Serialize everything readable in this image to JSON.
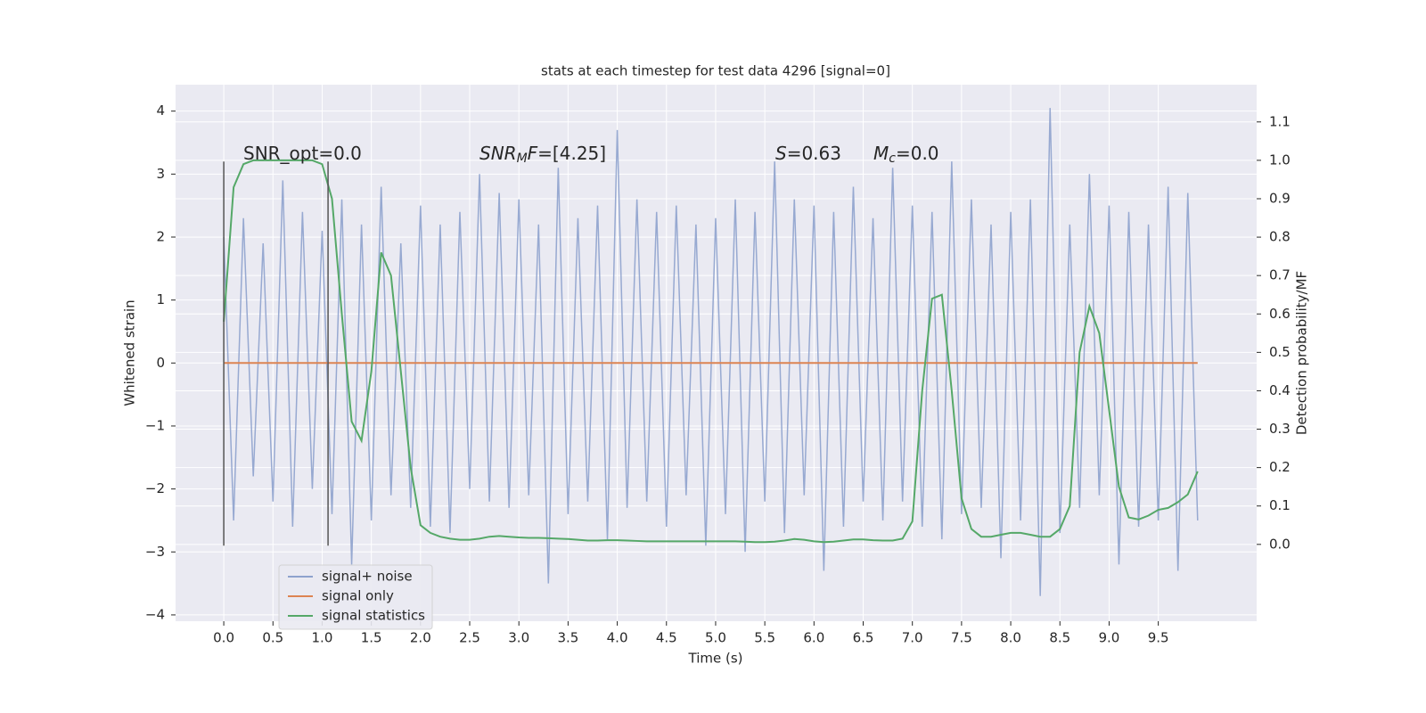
{
  "chart_data": {
    "type": "line",
    "title": "stats at each timestep for test data 4296 [signal=0]",
    "xlabel": "Time (s)",
    "ylabel": "Whitened strain",
    "y2label": "Detection probability/MF",
    "xlim": [
      -0.49,
      10.5
    ],
    "ylim": [
      -4.1,
      4.42
    ],
    "y2lim": [
      -0.2,
      1.197
    ],
    "xticks": [
      {
        "value": 0,
        "label": "0.0"
      },
      0.5,
      {
        "value": 1,
        "label": "1.0"
      },
      1.5,
      {
        "value": 2,
        "label": "2.0"
      },
      2.5,
      {
        "value": 3,
        "label": "3.0"
      },
      3.5,
      {
        "value": 4,
        "label": "4.0"
      },
      4.5,
      {
        "value": 5,
        "label": "5.0"
      },
      5.5,
      {
        "value": 6,
        "label": "6.0"
      },
      6.5,
      {
        "value": 7,
        "label": "7.0"
      },
      7.5,
      {
        "value": 8,
        "label": "8.0"
      },
      8.5,
      {
        "value": 9,
        "label": "9.0"
      },
      9.5
    ],
    "yticks": [
      {
        "value": -4,
        "label": "−4"
      },
      {
        "value": -3,
        "label": "−3"
      },
      {
        "value": -2,
        "label": "−2"
      },
      {
        "value": -1,
        "label": "−1"
      },
      0,
      1,
      2,
      3,
      4
    ],
    "y2ticks": [
      {
        "value": 0,
        "label": "0.0"
      },
      0.1,
      0.2,
      0.3,
      0.4,
      0.5,
      0.6,
      0.7,
      0.8,
      0.9,
      {
        "value": 1,
        "label": "1.0"
      },
      1.1
    ],
    "grid": true,
    "legend": "lower left",
    "x": [
      0,
      0.1,
      0.2,
      0.3,
      0.4,
      0.5,
      0.6,
      0.7,
      0.8,
      0.9,
      1,
      1.1,
      1.2,
      1.3,
      1.4,
      1.5,
      1.6,
      1.7,
      1.8,
      1.9,
      2,
      2.1,
      2.2,
      2.3,
      2.4,
      2.5,
      2.6,
      2.7,
      2.8,
      2.9,
      3,
      3.1,
      3.2,
      3.3,
      3.4,
      3.5,
      3.6,
      3.7,
      3.8,
      3.9,
      4,
      4.1,
      4.2,
      4.3,
      4.4,
      4.5,
      4.6,
      4.7,
      4.8,
      4.9,
      5,
      5.1,
      5.2,
      5.3,
      5.4,
      5.5,
      5.6,
      5.7,
      5.8,
      5.9,
      6,
      6.1,
      6.2,
      6.3,
      6.4,
      6.5,
      6.6,
      6.7,
      6.8,
      6.9,
      7,
      7.1,
      7.2,
      7.3,
      7.4,
      7.5,
      7.6,
      7.7,
      7.8,
      7.9,
      8,
      8.1,
      8.2,
      8.3,
      8.4,
      8.5,
      8.6,
      8.7,
      8.8,
      8.9,
      9,
      9.1,
      9.2,
      9.3,
      9.4,
      9.5,
      9.6,
      9.7,
      9.8,
      9.9
    ],
    "series": [
      {
        "name": "signal+ noise",
        "color": "#8ea2cd",
        "values": [
          2.0,
          -2.5,
          2.3,
          -1.8,
          1.9,
          -2.2,
          2.9,
          -2.6,
          2.4,
          -2.0,
          2.1,
          -2.4,
          2.6,
          -3.2,
          2.2,
          -2.5,
          2.8,
          -2.1,
          1.9,
          -2.3,
          2.5,
          -2.6,
          2.2,
          -2.7,
          2.4,
          -2.0,
          3.0,
          -2.2,
          2.7,
          -2.3,
          2.6,
          -2.1,
          2.2,
          -3.5,
          3.1,
          -2.4,
          2.3,
          -2.2,
          2.5,
          -2.8,
          3.7,
          -2.3,
          2.6,
          -2.2,
          2.4,
          -2.6,
          2.5,
          -2.1,
          2.2,
          -2.9,
          2.3,
          -2.4,
          2.6,
          -3.0,
          2.4,
          -2.2,
          3.2,
          -2.7,
          2.6,
          -2.1,
          2.5,
          -3.3,
          2.4,
          -2.6,
          2.8,
          -2.2,
          2.3,
          -2.5,
          3.1,
          -2.2,
          2.5,
          -2.6,
          2.4,
          -2.8,
          3.2,
          -2.4,
          2.6,
          -2.3,
          2.2,
          -3.1,
          2.4,
          -2.5,
          2.6,
          -3.7,
          4.05,
          -2.7,
          2.2,
          -2.3,
          3.0,
          -2.1,
          2.5,
          -3.2,
          2.4,
          -2.6,
          2.2,
          -2.5,
          2.8,
          -3.3,
          2.7,
          -2.5
        ]
      },
      {
        "name": "signal only",
        "color": "#dd8452",
        "values": [
          0,
          0,
          0,
          0,
          0,
          0,
          0,
          0,
          0,
          0,
          0,
          0,
          0,
          0,
          0,
          0,
          0,
          0,
          0,
          0,
          0,
          0,
          0,
          0,
          0,
          0,
          0,
          0,
          0,
          0,
          0,
          0,
          0,
          0,
          0,
          0,
          0,
          0,
          0,
          0,
          0,
          0,
          0,
          0,
          0,
          0,
          0,
          0,
          0,
          0,
          0,
          0,
          0,
          0,
          0,
          0,
          0,
          0,
          0,
          0,
          0,
          0,
          0,
          0,
          0,
          0,
          0,
          0,
          0,
          0,
          0,
          0,
          0,
          0,
          0,
          0,
          0,
          0,
          0,
          0,
          0,
          0,
          0,
          0,
          0,
          0,
          0,
          0,
          0,
          0,
          0,
          0,
          0,
          0,
          0,
          0,
          0,
          0,
          0,
          0
        ]
      },
      {
        "name": "signal statistics",
        "color": "#55a868",
        "axis": "y2",
        "values": [
          0.58,
          0.93,
          0.99,
          1.0,
          1.0,
          1.0,
          1.0,
          1.0,
          1.0,
          1.0,
          0.99,
          0.9,
          0.6,
          0.32,
          0.27,
          0.45,
          0.76,
          0.7,
          0.45,
          0.2,
          0.05,
          0.03,
          0.02,
          0.015,
          0.012,
          0.012,
          0.015,
          0.02,
          0.022,
          0.02,
          0.018,
          0.017,
          0.017,
          0.016,
          0.015,
          0.014,
          0.012,
          0.01,
          0.01,
          0.011,
          0.011,
          0.01,
          0.009,
          0.008,
          0.008,
          0.008,
          0.008,
          0.008,
          0.008,
          0.008,
          0.008,
          0.008,
          0.008,
          0.007,
          0.006,
          0.006,
          0.007,
          0.01,
          0.014,
          0.012,
          0.008,
          0.006,
          0.007,
          0.01,
          0.013,
          0.013,
          0.011,
          0.01,
          0.01,
          0.015,
          0.06,
          0.4,
          0.64,
          0.65,
          0.4,
          0.12,
          0.04,
          0.02,
          0.02,
          0.025,
          0.03,
          0.03,
          0.025,
          0.02,
          0.02,
          0.04,
          0.1,
          0.5,
          0.62,
          0.55,
          0.35,
          0.15,
          0.07,
          0.065,
          0.075,
          0.09,
          0.095,
          0.11,
          0.13,
          0.19
        ]
      }
    ],
    "vlines": {
      "x": [
        0,
        1.06
      ],
      "ymin": -2.9,
      "ymax": 3.2,
      "color": "#555555"
    },
    "annotations": [
      {
        "parts": [
          {
            "text": "SNR_opt=0.0",
            "style": "normal"
          }
        ]
      },
      {
        "parts": [
          {
            "text": "SNR",
            "style": "italic"
          },
          {
            "text": "M",
            "style": "sub"
          },
          {
            "text": "F",
            "style": "italic"
          },
          {
            "text": "=[4.25]",
            "style": "normal"
          }
        ]
      },
      {
        "parts": [
          {
            "text": "S",
            "style": "italic"
          },
          {
            "text": "=0.63",
            "style": "normal"
          }
        ]
      },
      {
        "parts": [
          {
            "text": "M",
            "style": "italic"
          },
          {
            "text": "c",
            "style": "sub"
          },
          {
            "text": "=0.0",
            "style": "normal"
          }
        ]
      }
    ]
  }
}
